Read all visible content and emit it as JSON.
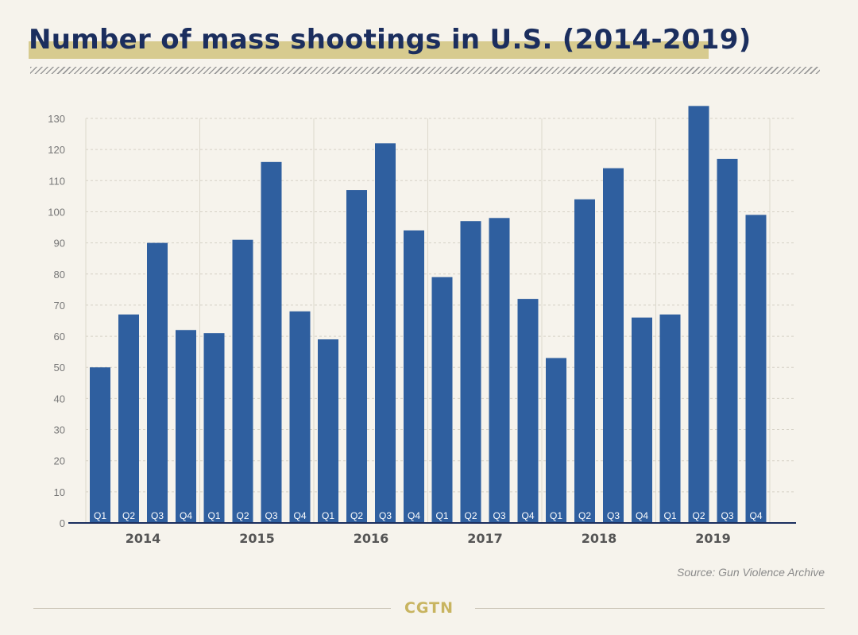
{
  "title": "Number of mass shootings in U.S. (2014-2019)",
  "source": "Source: Gun Violence Archive",
  "logo": "CGTN",
  "colors": {
    "bar": "#2f5f9f",
    "title": "#1b2e5e",
    "highlight": "#d7cb8f",
    "logo": "#c8b460"
  },
  "chart_data": {
    "type": "bar",
    "title": "Number of mass shootings in U.S. (2014-2019)",
    "xlabel": "",
    "ylabel": "",
    "ylim": [
      0,
      130
    ],
    "yticks": [
      0,
      10,
      20,
      30,
      40,
      50,
      60,
      70,
      80,
      90,
      100,
      110,
      120,
      130
    ],
    "grid": true,
    "groups": [
      {
        "label": "2014",
        "quarters": [
          "Q1",
          "Q2",
          "Q3",
          "Q4"
        ],
        "values": [
          50,
          67,
          90,
          62
        ]
      },
      {
        "label": "2015",
        "quarters": [
          "Q1",
          "Q2",
          "Q3",
          "Q4"
        ],
        "values": [
          61,
          91,
          116,
          68
        ]
      },
      {
        "label": "2016",
        "quarters": [
          "Q1",
          "Q2",
          "Q3",
          "Q4"
        ],
        "values": [
          59,
          107,
          122,
          94
        ]
      },
      {
        "label": "2017",
        "quarters": [
          "Q1",
          "Q2",
          "Q3",
          "Q4"
        ],
        "values": [
          79,
          97,
          98,
          72
        ]
      },
      {
        "label": "2018",
        "quarters": [
          "Q1",
          "Q2",
          "Q3",
          "Q4"
        ],
        "values": [
          53,
          104,
          114,
          66
        ]
      },
      {
        "label": "2019",
        "quarters": [
          "Q1",
          "Q2",
          "Q3",
          "Q4"
        ],
        "values": [
          67,
          134,
          117,
          99
        ]
      }
    ]
  }
}
